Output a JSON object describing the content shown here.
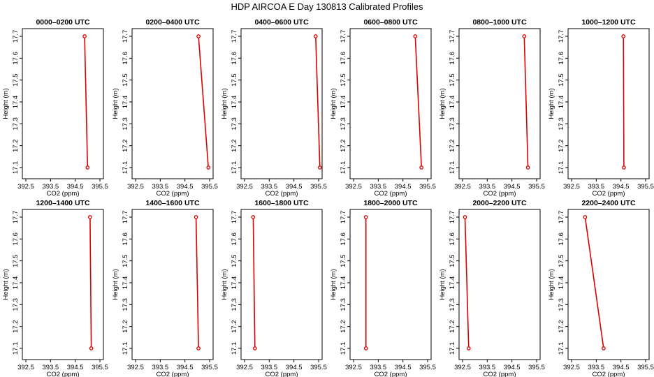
{
  "figure_title": "HDP AIRCOA E  Day 130813  Calibrated Profiles",
  "colors": {
    "line": "#dd0000",
    "marker": "#dd0000",
    "frame": "#000000"
  },
  "chart_data": [
    {
      "type": "line",
      "title": "0000–0200 UTC",
      "xlabel": "CO2 (ppm)",
      "ylabel": "Height (m)",
      "xlim": [
        392.5,
        395.5
      ],
      "ylim": [
        17.1,
        17.7
      ],
      "xticks": [
        "392.5",
        "393.5",
        "394.5",
        "395.5"
      ],
      "yticks": [
        "17.1",
        "17.2",
        "17.3",
        "17.4",
        "17.5",
        "17.6",
        "17.7"
      ],
      "x": [
        395.0,
        394.88
      ],
      "y": [
        17.1,
        17.7
      ]
    },
    {
      "type": "line",
      "title": "0200–0400 UTC",
      "xlabel": "CO2 (ppm)",
      "ylabel": "Height (m)",
      "xlim": [
        392.5,
        395.5
      ],
      "ylim": [
        17.1,
        17.7
      ],
      "xticks": [
        "392.5",
        "393.5",
        "394.5",
        "395.5"
      ],
      "yticks": [
        "17.1",
        "17.2",
        "17.3",
        "17.4",
        "17.5",
        "17.6",
        "17.7"
      ],
      "x": [
        395.45,
        395.05
      ],
      "y": [
        17.1,
        17.7
      ]
    },
    {
      "type": "line",
      "title": "0400–0600 UTC",
      "xlabel": "CO2 (ppm)",
      "ylabel": "Height (m)",
      "xlim": [
        392.5,
        395.5
      ],
      "ylim": [
        17.1,
        17.7
      ],
      "xticks": [
        "392.5",
        "393.5",
        "394.5",
        "395.5"
      ],
      "yticks": [
        "17.1",
        "17.2",
        "17.3",
        "17.4",
        "17.5",
        "17.6",
        "17.7"
      ],
      "x": [
        395.55,
        395.38
      ],
      "y": [
        17.1,
        17.7
      ]
    },
    {
      "type": "line",
      "title": "0600–0800 UTC",
      "xlabel": "CO2 (ppm)",
      "ylabel": "Height (m)",
      "xlim": [
        392.5,
        395.5
      ],
      "ylim": [
        17.1,
        17.7
      ],
      "xticks": [
        "392.5",
        "393.5",
        "394.5",
        "395.5"
      ],
      "yticks": [
        "17.1",
        "17.2",
        "17.3",
        "17.4",
        "17.5",
        "17.6",
        "17.7"
      ],
      "x": [
        395.25,
        395.0
      ],
      "y": [
        17.1,
        17.7
      ]
    },
    {
      "type": "line",
      "title": "0800–1000 UTC",
      "xlabel": "CO2 (ppm)",
      "ylabel": "Height (m)",
      "xlim": [
        392.5,
        395.5
      ],
      "ylim": [
        17.1,
        17.7
      ],
      "xticks": [
        "392.5",
        "393.5",
        "394.5",
        "395.5"
      ],
      "yticks": [
        "17.1",
        "17.2",
        "17.3",
        "17.4",
        "17.5",
        "17.6",
        "17.7"
      ],
      "x": [
        395.15,
        395.0
      ],
      "y": [
        17.1,
        17.7
      ]
    },
    {
      "type": "line",
      "title": "1000–1200 UTC",
      "xlabel": "CO2 (ppm)",
      "ylabel": "Height (m)",
      "xlim": [
        392.5,
        395.5
      ],
      "ylim": [
        17.1,
        17.7
      ],
      "xticks": [
        "392.5",
        "393.5",
        "394.5",
        "395.5"
      ],
      "yticks": [
        "17.1",
        "17.2",
        "17.3",
        "17.4",
        "17.5",
        "17.6",
        "17.7"
      ],
      "x": [
        394.62,
        394.6
      ],
      "y": [
        17.1,
        17.7
      ]
    },
    {
      "type": "line",
      "title": "1200–1400 UTC",
      "xlabel": "CO2 (ppm)",
      "ylabel": "Height (m)",
      "xlim": [
        392.5,
        395.5
      ],
      "ylim": [
        17.1,
        17.7
      ],
      "xticks": [
        "392.5",
        "393.5",
        "394.5",
        "395.5"
      ],
      "yticks": [
        "17.1",
        "17.2",
        "17.3",
        "17.4",
        "17.5",
        "17.6",
        "17.7"
      ],
      "x": [
        395.15,
        395.1
      ],
      "y": [
        17.1,
        17.7
      ]
    },
    {
      "type": "line",
      "title": "1400–1600 UTC",
      "xlabel": "CO2 (ppm)",
      "ylabel": "Height (m)",
      "xlim": [
        392.5,
        395.5
      ],
      "ylim": [
        17.1,
        17.7
      ],
      "xticks": [
        "392.5",
        "393.5",
        "394.5",
        "395.5"
      ],
      "yticks": [
        "17.1",
        "17.2",
        "17.3",
        "17.4",
        "17.5",
        "17.6",
        "17.7"
      ],
      "x": [
        395.05,
        394.95
      ],
      "y": [
        17.1,
        17.7
      ]
    },
    {
      "type": "line",
      "title": "1600–1800 UTC",
      "xlabel": "CO2 (ppm)",
      "ylabel": "Height (m)",
      "xlim": [
        392.5,
        395.5
      ],
      "ylim": [
        17.1,
        17.7
      ],
      "xticks": [
        "392.5",
        "393.5",
        "394.5",
        "395.5"
      ],
      "yticks": [
        "17.1",
        "17.2",
        "17.3",
        "17.4",
        "17.5",
        "17.6",
        "17.7"
      ],
      "x": [
        392.92,
        392.85
      ],
      "y": [
        17.1,
        17.7
      ]
    },
    {
      "type": "line",
      "title": "1800–2000 UTC",
      "xlabel": "CO2 (ppm)",
      "ylabel": "Height (m)",
      "xlim": [
        392.5,
        395.5
      ],
      "ylim": [
        17.1,
        17.7
      ],
      "xticks": [
        "392.5",
        "393.5",
        "394.5",
        "395.5"
      ],
      "yticks": [
        "17.1",
        "17.2",
        "17.3",
        "17.4",
        "17.5",
        "17.6",
        "17.7"
      ],
      "x": [
        393.0,
        393.0
      ],
      "y": [
        17.1,
        17.7
      ]
    },
    {
      "type": "line",
      "title": "2000–2200 UTC",
      "xlabel": "CO2 (ppm)",
      "ylabel": "Height (m)",
      "xlim": [
        392.5,
        395.5
      ],
      "ylim": [
        17.1,
        17.7
      ],
      "xticks": [
        "392.5",
        "393.5",
        "394.5",
        "395.5"
      ],
      "yticks": [
        "17.1",
        "17.2",
        "17.3",
        "17.4",
        "17.5",
        "17.6",
        "17.7"
      ],
      "x": [
        392.75,
        392.6
      ],
      "y": [
        17.1,
        17.7
      ]
    },
    {
      "type": "line",
      "title": "2200–2400 UTC",
      "xlabel": "CO2 (ppm)",
      "ylabel": "Height (m)",
      "xlim": [
        392.5,
        395.5
      ],
      "ylim": [
        17.1,
        17.7
      ],
      "xticks": [
        "392.5",
        "393.5",
        "394.5",
        "395.5"
      ],
      "yticks": [
        "17.1",
        "17.2",
        "17.3",
        "17.4",
        "17.5",
        "17.6",
        "17.7"
      ],
      "x": [
        393.8,
        393.05
      ],
      "y": [
        17.1,
        17.7
      ]
    }
  ]
}
